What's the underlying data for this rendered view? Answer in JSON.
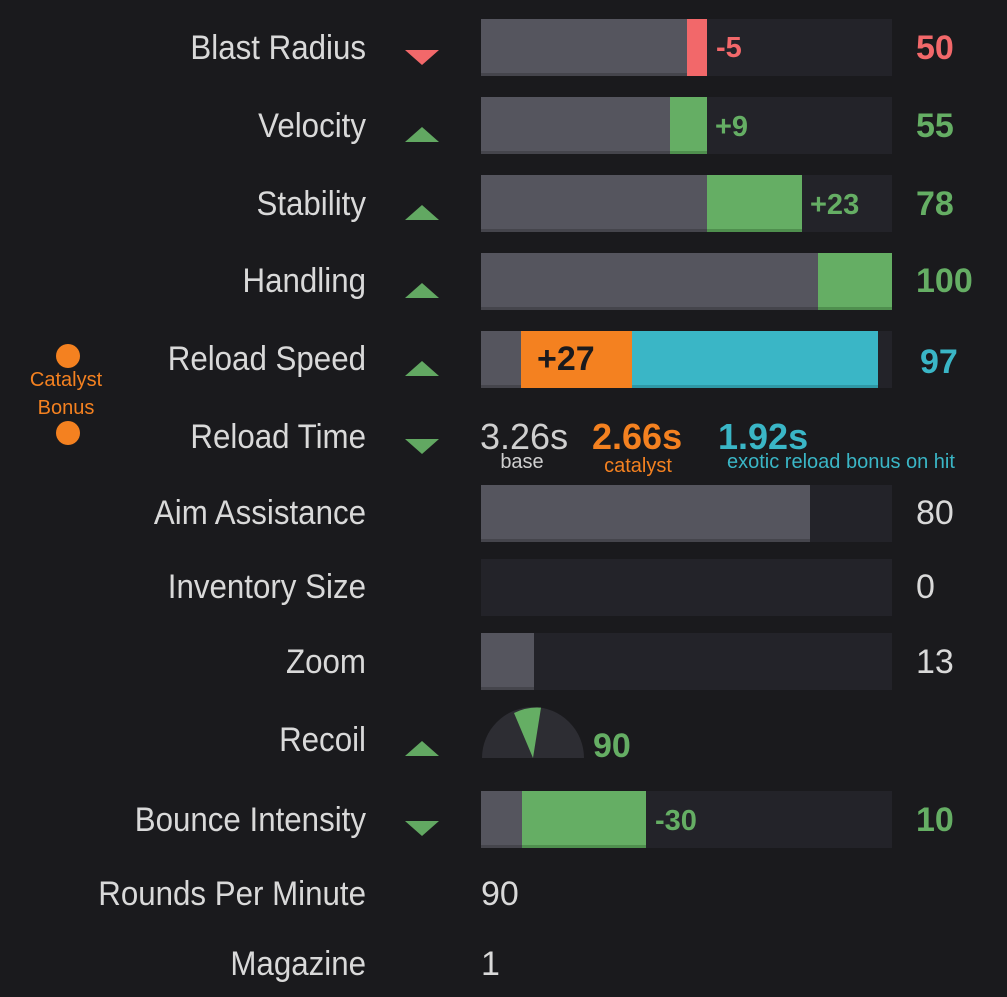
{
  "colors": {
    "positive": "#65ae64",
    "negative": "#f2686a",
    "catalyst": "#f48120",
    "exotic": "#3ab6c6",
    "bar_base": "#55555e",
    "bar_track": "#232329",
    "background": "#1a1a1d"
  },
  "catalyst_bonus": {
    "line1": "Catalyst",
    "line2": "Bonus"
  },
  "stats": {
    "blast_radius": {
      "label": "Blast Radius",
      "trend": "down",
      "delta": "-5",
      "value": "50",
      "base": 0.55,
      "bonus": 0.05
    },
    "velocity": {
      "label": "Velocity",
      "trend": "up",
      "delta": "+9",
      "value": "55",
      "base": 0.46,
      "bonus": 0.09
    },
    "stability": {
      "label": "Stability",
      "trend": "up",
      "delta": "+23",
      "value": "78",
      "base": 0.55,
      "bonus": 0.23
    },
    "handling": {
      "label": "Handling",
      "trend": "up",
      "value": "100",
      "base": 0.82,
      "bonus": 0.18
    },
    "reload_speed": {
      "label": "Reload Speed",
      "trend": "up",
      "delta": "+27",
      "value": "97",
      "base": 0.1,
      "catalyst": 0.27,
      "exotic": 0.6
    },
    "reload_time": {
      "label": "Reload Time",
      "trend": "down",
      "base_value": "3.26s",
      "base_caption": "base",
      "catalyst_value": "2.66s",
      "catalyst_caption": "catalyst",
      "exotic_value": "1.92s",
      "exotic_caption": "exotic reload bonus on hit"
    },
    "aim_assistance": {
      "label": "Aim Assistance",
      "value": "80",
      "base": 0.8
    },
    "inventory_size": {
      "label": "Inventory Size",
      "value": "0",
      "base": 0
    },
    "zoom": {
      "label": "Zoom",
      "value": "13",
      "base": 0.13
    },
    "recoil": {
      "label": "Recoil",
      "trend": "up",
      "value": "90"
    },
    "bounce_intensity": {
      "label": "Bounce Intensity",
      "trend": "down",
      "delta": "-30",
      "value": "10",
      "base": 0.1,
      "bonus": 0.3
    },
    "rounds_per_minute": {
      "label": "Rounds Per Minute",
      "value": "90"
    },
    "magazine": {
      "label": "Magazine",
      "value": "1"
    }
  }
}
